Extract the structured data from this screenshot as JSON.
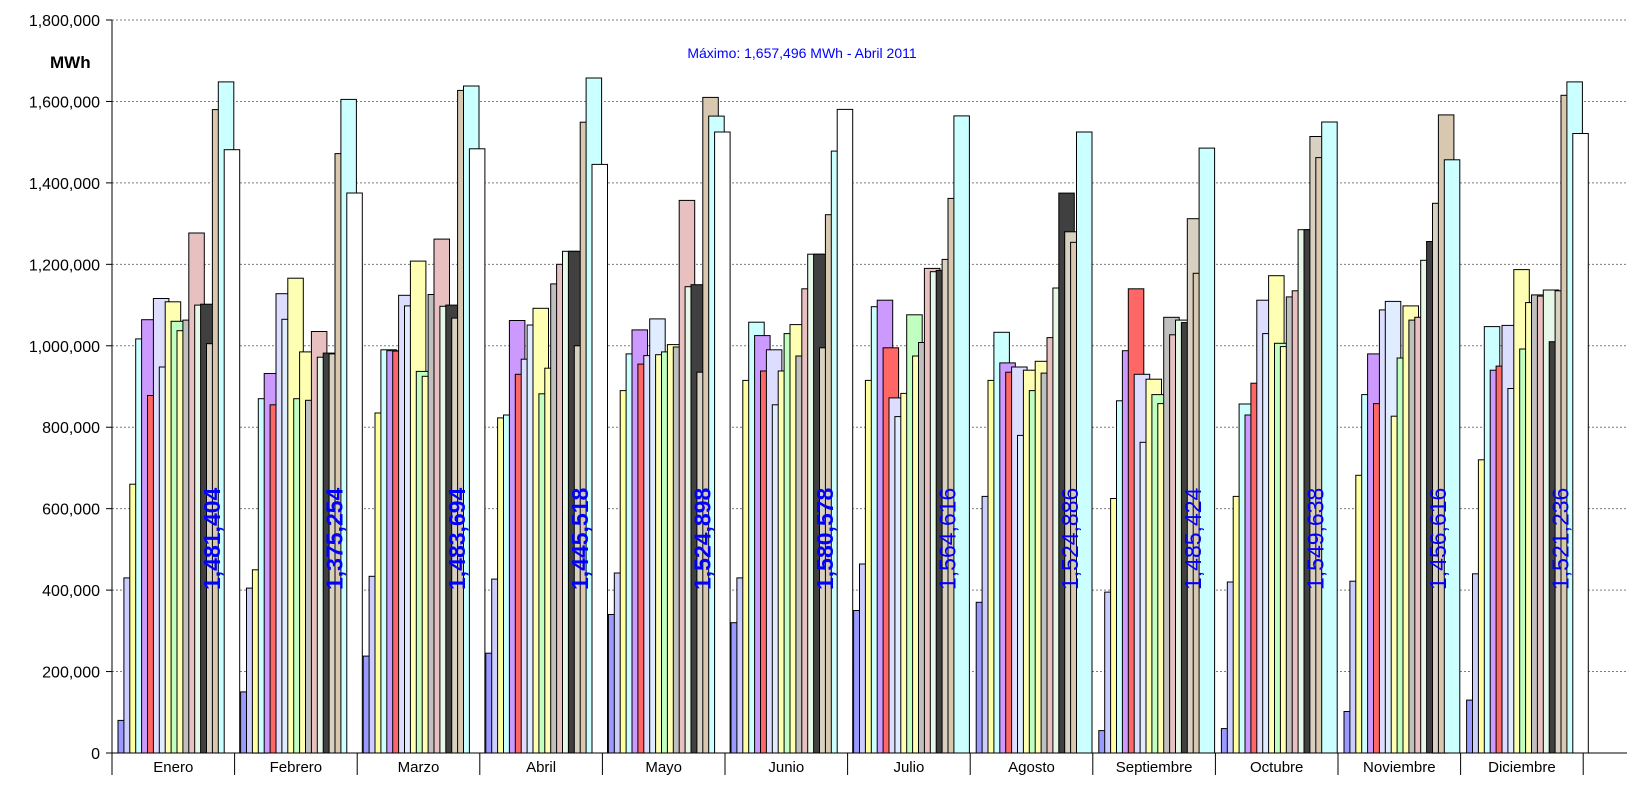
{
  "chart_data": {
    "type": "bar",
    "ylabel": "MWh",
    "ylim": [
      0,
      1800000
    ],
    "ytick_step": 200000,
    "yticks": [
      "0",
      "200,000",
      "400,000",
      "600,000",
      "800,000",
      "1,000,000",
      "1,200,000",
      "1,400,000",
      "1,600,000",
      "1,800,000"
    ],
    "annotation": "Máximo: 1,657,496 MWh - Abril 2011",
    "grid": true,
    "legend": "none",
    "categories": [
      "Enero",
      "Febrero",
      "Marzo",
      "Abril",
      "Mayo",
      "Junio",
      "Julio",
      "Agosto",
      "Septiembre",
      "Octubre",
      "Noviembre",
      "Diciembre"
    ],
    "series_colors": [
      "#9999ff",
      "#ccccff",
      "#ffffa0",
      "#ccffff",
      "#cc99ff",
      "#ff6666",
      "#ddddff",
      "#e0ecff",
      "#ffffb3",
      "#c0ffc0",
      "#ffffb3",
      "#bfbfbf",
      "#e8c0c0",
      "#e8f8e8",
      "#404040",
      "#d8d0c0",
      "#d8c8b0",
      "#ccffff",
      "#ffffff"
    ],
    "series": [
      {
        "values": [
          80000,
          150000,
          238000,
          245000,
          340000,
          320000,
          350000,
          370000,
          55000,
          60000,
          102000,
          130000
        ]
      },
      {
        "values": [
          430000,
          405000,
          434000,
          427000,
          442000,
          430000,
          464000,
          630000,
          395000,
          420000,
          422000,
          440000
        ]
      },
      {
        "values": [
          660000,
          450000,
          835000,
          823000,
          890000,
          915000,
          915000,
          915000,
          625000,
          630000,
          682000,
          720000
        ]
      },
      {
        "values": [
          1017000,
          870000,
          990000,
          830000,
          980000,
          1058000,
          1096000,
          1033000,
          865000,
          857000,
          880000,
          1047000
        ]
      },
      {
        "values": [
          1064000,
          932000,
          988000,
          1062000,
          1039000,
          1025000,
          1112000,
          958000,
          988000,
          830000,
          980000,
          940000
        ]
      },
      {
        "values": [
          878000,
          855000,
          987000,
          930000,
          955000,
          938000,
          995000,
          935000,
          1140000,
          908000,
          858000,
          950000
        ]
      },
      {
        "values": [
          1116000,
          1128000,
          1124000,
          967000,
          976000,
          990000,
          872000,
          948000,
          930000,
          1112000,
          1088000,
          1050000
        ]
      },
      {
        "values": [
          948000,
          1065000,
          1098000,
          1051000,
          1066000,
          855000,
          826000,
          780000,
          763000,
          1030000,
          1109000,
          895000
        ]
      },
      {
        "values": [
          1108000,
          1166000,
          1208000,
          1092000,
          978000,
          938000,
          883000,
          940000,
          918000,
          1172000,
          827000,
          1187000
        ]
      },
      {
        "values": [
          1060000,
          870000,
          937000,
          882000,
          985000,
          1030000,
          1076000,
          890000,
          880000,
          1006000,
          970000,
          992000
        ]
      },
      {
        "values": [
          1037000,
          985000,
          925000,
          945000,
          1003000,
          1052000,
          975000,
          962000,
          858000,
          998000,
          1098000,
          1106000
        ]
      },
      {
        "values": [
          1063000,
          866000,
          1126000,
          1152000,
          997000,
          975000,
          1008000,
          933000,
          1070000,
          1120000,
          1063000,
          1125000
        ]
      },
      {
        "values": [
          1277000,
          1035000,
          1262000,
          1200000,
          1357000,
          1140000,
          1190000,
          1020000,
          1027000,
          1135000,
          1070000,
          1122000
        ]
      },
      {
        "values": [
          1100000,
          972000,
          1097000,
          1232000,
          1145000,
          1225000,
          1182000,
          1142000,
          1063000,
          1285000,
          1210000,
          1137000
        ]
      },
      {
        "values": [
          1102000,
          982000,
          1100000,
          1232000,
          1150000,
          1225000,
          1185000,
          1375000,
          1057000,
          1285000,
          1256000,
          1010000
        ]
      },
      {
        "values": [
          1005000,
          980000,
          1068000,
          1000000,
          935000,
          995000,
          1212000,
          1280000,
          1312000,
          1514000,
          1350000,
          1135000
        ]
      },
      {
        "values": [
          1580000,
          1472000,
          1627000,
          1549000,
          1610000,
          1322000,
          1362000,
          1254000,
          1178000,
          1462000,
          1567000,
          1615000
        ]
      },
      {
        "values": [
          1648000,
          1605000,
          1638000,
          1657496,
          1564000,
          1478000,
          1564616,
          1524886,
          1485424,
          1549638,
          1456616,
          1648000
        ]
      },
      {
        "values": [
          1481404,
          1375254,
          1483694,
          1445518,
          1524898,
          1580578,
          null,
          null,
          null,
          null,
          null,
          1521236
        ]
      }
    ],
    "data_labels": [
      "1,481,404",
      "1,375,254",
      "1,483,694",
      "1,445,518",
      "1,524,898",
      "1,580,578",
      "1,564,616",
      "1,524,886",
      "1,485,424",
      "1,549,638",
      "1,456,616",
      "1,521,236"
    ],
    "data_label_bold": [
      true,
      true,
      true,
      true,
      true,
      true,
      false,
      false,
      false,
      false,
      false,
      false
    ]
  }
}
